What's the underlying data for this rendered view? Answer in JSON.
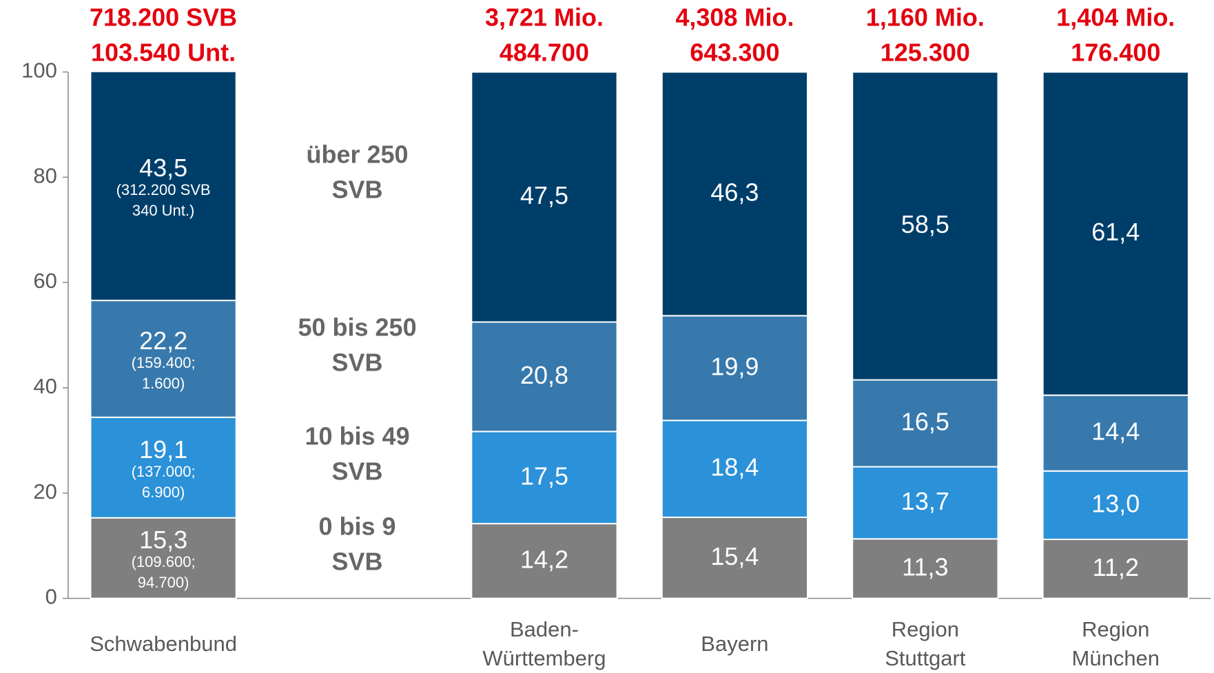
{
  "chart_data": {
    "type": "stacked_bar",
    "categories": [
      "Schwabenbund",
      null,
      "Baden-\nWürttemberg",
      "Bayern",
      "Region\nStuttgart",
      "Region\nMünchen"
    ],
    "top_labels": [
      "718.200 SVB\n103.540 Unt.",
      null,
      "3,721 Mio.\n484.700",
      "4,308 Mio.\n643.300",
      "1,160 Mio.\n125.300",
      "1,404 Mio.\n176.400"
    ],
    "series": [
      {
        "name": "0 bis 9\nSVB",
        "color": "#7f7f7f",
        "values": [
          15.3,
          null,
          14.2,
          15.4,
          11.3,
          11.2
        ],
        "value_labels": [
          "15,3",
          null,
          "14,2",
          "15,4",
          "11,3",
          "11,2"
        ],
        "details": [
          "(109.600;\n94.700)",
          null,
          null,
          null,
          null,
          null
        ]
      },
      {
        "name": "10 bis 49\nSVB",
        "color": "#2b91d8",
        "values": [
          19.1,
          null,
          17.5,
          18.4,
          13.7,
          13.0
        ],
        "value_labels": [
          "19,1",
          null,
          "17,5",
          "18,4",
          "13,7",
          "13,0"
        ],
        "details": [
          "(137.000;\n6.900)",
          null,
          null,
          null,
          null,
          null
        ]
      },
      {
        "name": "50 bis 250\nSVB",
        "color": "#3779ac",
        "values": [
          22.2,
          null,
          20.8,
          19.9,
          16.5,
          14.4
        ],
        "value_labels": [
          "22,2",
          null,
          "20,8",
          "19,9",
          "16,5",
          "14,4"
        ],
        "details": [
          "(159.400;\n1.600)",
          null,
          null,
          null,
          null,
          null
        ]
      },
      {
        "name": "über 250\nSVB",
        "color": "#003e6a",
        "values": [
          43.5,
          null,
          47.5,
          46.3,
          58.5,
          61.4
        ],
        "value_labels": [
          "43,5",
          null,
          "47,5",
          "46,3",
          "58,5",
          "61,4"
        ],
        "details": [
          "(312.200 SVB\n340 Unt.)",
          null,
          null,
          null,
          null,
          null
        ]
      }
    ],
    "ylim": [
      0,
      100
    ],
    "yticks": [
      0,
      20,
      40,
      60,
      80,
      100
    ],
    "grid": false
  }
}
